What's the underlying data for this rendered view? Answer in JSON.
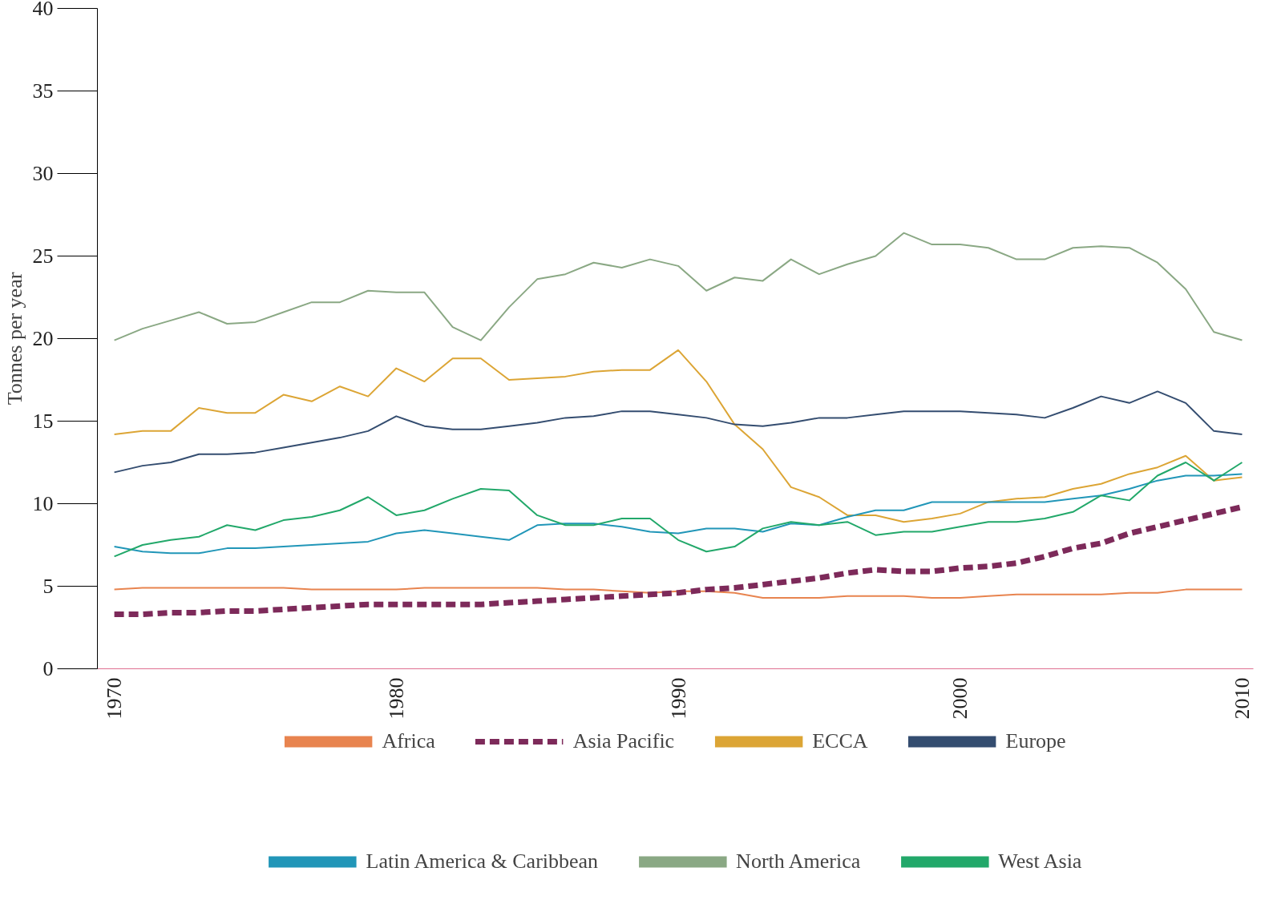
{
  "chart_data": {
    "type": "line",
    "ylabel": "Tonnes per year",
    "x": [
      1970,
      1971,
      1972,
      1973,
      1974,
      1975,
      1976,
      1977,
      1978,
      1979,
      1980,
      1981,
      1982,
      1983,
      1984,
      1985,
      1986,
      1987,
      1988,
      1989,
      1990,
      1991,
      1992,
      1993,
      1994,
      1995,
      1996,
      1997,
      1998,
      1999,
      2000,
      2001,
      2002,
      2003,
      2004,
      2005,
      2006,
      2007,
      2008,
      2009,
      2010
    ],
    "xlim": [
      1969.4,
      2010.4
    ],
    "xticks": [
      1970,
      1980,
      1990,
      2000,
      2010
    ],
    "ylim": [
      0,
      40
    ],
    "yticks": [
      0,
      5,
      10,
      15,
      20,
      25,
      30,
      35,
      40
    ],
    "grid": false,
    "legend": "bottom",
    "marker": "none",
    "line_style": "solid",
    "series": [
      {
        "name": "Africa",
        "color": "#e8844f",
        "values": [
          4.8,
          4.9,
          4.9,
          4.9,
          4.9,
          4.9,
          4.9,
          4.8,
          4.8,
          4.8,
          4.8,
          4.9,
          4.9,
          4.9,
          4.9,
          4.9,
          4.8,
          4.8,
          4.7,
          4.6,
          4.7,
          4.7,
          4.6,
          4.3,
          4.3,
          4.3,
          4.4,
          4.4,
          4.4,
          4.3,
          4.3,
          4.4,
          4.5,
          4.5,
          4.5,
          4.5,
          4.6,
          4.6,
          4.8,
          4.8,
          4.8
        ]
      },
      {
        "name": "Asia Pacific",
        "color": "#7d2a5a",
        "line_style": "dashed",
        "values": [
          3.3,
          3.3,
          3.4,
          3.4,
          3.5,
          3.5,
          3.6,
          3.7,
          3.8,
          3.9,
          3.9,
          3.9,
          3.9,
          3.9,
          4.0,
          4.1,
          4.2,
          4.3,
          4.4,
          4.5,
          4.6,
          4.8,
          4.9,
          5.1,
          5.3,
          5.5,
          5.8,
          6.0,
          5.9,
          5.9,
          6.1,
          6.2,
          6.4,
          6.8,
          7.3,
          7.6,
          8.2,
          8.6,
          9.0,
          9.4,
          9.8
        ]
      },
      {
        "name": "ECCA",
        "color": "#dca535",
        "values": [
          14.2,
          14.4,
          14.4,
          15.8,
          15.5,
          15.5,
          16.6,
          16.2,
          17.1,
          16.5,
          18.2,
          17.4,
          18.8,
          18.8,
          17.5,
          17.6,
          17.7,
          18.0,
          18.1,
          18.1,
          19.3,
          17.4,
          14.8,
          13.3,
          11.0,
          10.4,
          9.3,
          9.3,
          8.9,
          9.1,
          9.4,
          10.1,
          10.3,
          10.4,
          10.9,
          11.2,
          11.8,
          12.2,
          12.9,
          11.4,
          11.6
        ]
      },
      {
        "name": "Europe",
        "color": "#344d70",
        "values": [
          11.9,
          12.3,
          12.5,
          13.0,
          13.0,
          13.1,
          13.4,
          13.7,
          14.0,
          14.4,
          15.3,
          14.7,
          14.5,
          14.5,
          14.7,
          14.9,
          15.2,
          15.3,
          15.6,
          15.6,
          15.4,
          15.2,
          14.8,
          14.7,
          14.9,
          15.2,
          15.2,
          15.4,
          15.6,
          15.6,
          15.6,
          15.5,
          15.4,
          15.2,
          15.8,
          16.5,
          16.1,
          16.8,
          16.1,
          14.4,
          14.2
        ]
      },
      {
        "name": "Latin America & Caribbean",
        "color": "#2196b8",
        "values": [
          7.4,
          7.1,
          7.0,
          7.0,
          7.3,
          7.3,
          7.4,
          7.5,
          7.6,
          7.7,
          8.2,
          8.4,
          8.2,
          8.0,
          7.8,
          8.7,
          8.8,
          8.8,
          8.6,
          8.3,
          8.2,
          8.5,
          8.5,
          8.3,
          8.8,
          8.7,
          9.2,
          9.6,
          9.6,
          10.1,
          10.1,
          10.1,
          10.1,
          10.1,
          10.3,
          10.5,
          10.9,
          11.4,
          11.7,
          11.7,
          11.8
        ]
      },
      {
        "name": "North America",
        "color": "#8aa884",
        "values": [
          19.9,
          20.6,
          21.1,
          21.6,
          20.9,
          21.0,
          21.6,
          22.2,
          22.2,
          22.9,
          22.8,
          22.8,
          20.7,
          19.9,
          21.9,
          23.6,
          23.9,
          24.6,
          24.3,
          24.8,
          24.4,
          22.9,
          23.7,
          23.5,
          24.8,
          23.9,
          24.5,
          25.0,
          26.4,
          25.7,
          25.7,
          25.5,
          24.8,
          24.8,
          25.5,
          25.6,
          25.5,
          24.6,
          23.0,
          20.4,
          19.9
        ]
      },
      {
        "name": "West Asia",
        "color": "#22a86a",
        "values": [
          6.8,
          7.5,
          7.8,
          8.0,
          8.7,
          8.4,
          9.0,
          9.2,
          9.6,
          10.4,
          9.3,
          9.6,
          10.3,
          10.9,
          10.8,
          9.3,
          8.7,
          8.7,
          9.1,
          9.1,
          7.8,
          7.1,
          7.4,
          8.5,
          8.9,
          8.7,
          8.9,
          8.1,
          8.3,
          8.3,
          8.6,
          8.9,
          8.9,
          9.1,
          9.5,
          10.5,
          10.2,
          11.7,
          12.5,
          11.4,
          12.5
        ]
      }
    ]
  }
}
